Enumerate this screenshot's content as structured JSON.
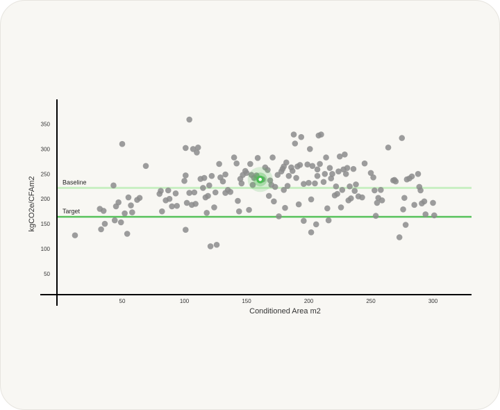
{
  "chart_data": {
    "type": "scatter",
    "xlabel": "Conditioned Area m2",
    "ylabel": "kgCO2e/CFAm2",
    "xlim": [
      0,
      335
    ],
    "ylim": [
      -10,
      385
    ],
    "x_ticks": [
      50,
      100,
      150,
      200,
      250,
      300
    ],
    "y_ticks": [
      50,
      100,
      150,
      200,
      250,
      300,
      350
    ],
    "grid": false,
    "reference_lines": [
      {
        "name": "Baseline",
        "y": 222,
        "color": "#c8efc2"
      },
      {
        "name": "Target",
        "y": 164,
        "color": "#56c25a"
      }
    ],
    "highlight": {
      "x": 161,
      "y": 239,
      "color": "#4cbe54"
    },
    "point_color": "#8c8c8c",
    "points": [
      [
        12,
        127
      ],
      [
        32,
        180
      ],
      [
        33,
        139
      ],
      [
        35,
        176
      ],
      [
        36,
        150
      ],
      [
        43,
        227
      ],
      [
        44,
        157
      ],
      [
        45,
        185
      ],
      [
        47,
        193
      ],
      [
        49,
        153
      ],
      [
        50,
        310
      ],
      [
        52,
        171
      ],
      [
        54,
        130
      ],
      [
        55,
        203
      ],
      [
        57,
        187
      ],
      [
        58,
        173
      ],
      [
        62,
        198
      ],
      [
        64,
        202
      ],
      [
        69,
        266
      ],
      [
        80,
        210
      ],
      [
        81,
        216
      ],
      [
        82,
        175
      ],
      [
        85,
        197
      ],
      [
        87,
        217
      ],
      [
        88,
        200
      ],
      [
        90,
        185
      ],
      [
        93,
        211
      ],
      [
        94,
        186
      ],
      [
        100,
        236
      ],
      [
        101,
        247
      ],
      [
        101,
        138
      ],
      [
        101,
        302
      ],
      [
        102,
        192
      ],
      [
        104,
        212
      ],
      [
        104,
        359
      ],
      [
        106,
        188
      ],
      [
        107,
        300
      ],
      [
        108,
        213
      ],
      [
        109,
        190
      ],
      [
        110,
        293
      ],
      [
        111,
        303
      ],
      [
        113,
        240
      ],
      [
        115,
        222
      ],
      [
        116,
        242
      ],
      [
        117,
        203
      ],
      [
        118,
        172
      ],
      [
        119,
        206
      ],
      [
        120,
        227
      ],
      [
        121,
        105
      ],
      [
        122,
        246
      ],
      [
        124,
        183
      ],
      [
        125,
        213
      ],
      [
        126,
        108
      ],
      [
        128,
        270
      ],
      [
        129,
        243
      ],
      [
        131,
        235
      ],
      [
        133,
        249
      ],
      [
        133,
        212
      ],
      [
        135,
        218
      ],
      [
        137,
        214
      ],
      [
        140,
        283
      ],
      [
        142,
        271
      ],
      [
        143,
        196
      ],
      [
        144,
        175
      ],
      [
        145,
        240
      ],
      [
        146,
        231
      ],
      [
        147,
        248
      ],
      [
        149,
        256
      ],
      [
        150,
        252
      ],
      [
        152,
        178
      ],
      [
        153,
        270
      ],
      [
        154,
        248
      ],
      [
        155,
        228
      ],
      [
        156,
        242
      ],
      [
        158,
        247
      ],
      [
        159,
        282
      ],
      [
        163,
        239
      ],
      [
        165,
        263
      ],
      [
        167,
        258
      ],
      [
        168,
        206
      ],
      [
        169,
        237
      ],
      [
        170,
        228
      ],
      [
        171,
        283
      ],
      [
        172,
        195
      ],
      [
        173,
        224
      ],
      [
        175,
        248
      ],
      [
        176,
        165
      ],
      [
        178,
        255
      ],
      [
        179,
        260
      ],
      [
        180,
        265
      ],
      [
        180,
        218
      ],
      [
        181,
        182
      ],
      [
        182,
        273
      ],
      [
        183,
        226
      ],
      [
        184,
        246
      ],
      [
        186,
        263
      ],
      [
        187,
        256
      ],
      [
        188,
        329
      ],
      [
        189,
        311
      ],
      [
        190,
        242
      ],
      [
        191,
        265
      ],
      [
        192,
        189
      ],
      [
        193,
        268
      ],
      [
        194,
        324
      ],
      [
        196,
        156
      ],
      [
        196,
        230
      ],
      [
        199,
        269
      ],
      [
        200,
        232
      ],
      [
        201,
        300
      ],
      [
        202,
        133
      ],
      [
        202,
        199
      ],
      [
        203,
        266
      ],
      [
        205,
        231
      ],
      [
        206,
        149
      ],
      [
        207,
        246
      ],
      [
        207,
        259
      ],
      [
        208,
        327
      ],
      [
        209,
        270
      ],
      [
        210,
        329
      ],
      [
        212,
        234
      ],
      [
        213,
        250
      ],
      [
        214,
        283
      ],
      [
        215,
        181
      ],
      [
        216,
        157
      ],
      [
        217,
        262
      ],
      [
        218,
        241
      ],
      [
        219,
        250
      ],
      [
        221,
        207
      ],
      [
        222,
        225
      ],
      [
        223,
        210
      ],
      [
        224,
        255
      ],
      [
        225,
        285
      ],
      [
        226,
        183
      ],
      [
        227,
        218
      ],
      [
        228,
        259
      ],
      [
        229,
        289
      ],
      [
        230,
        250
      ],
      [
        231,
        262
      ],
      [
        232,
        197
      ],
      [
        233,
        225
      ],
      [
        234,
        201
      ],
      [
        236,
        260
      ],
      [
        237,
        216
      ],
      [
        238,
        229
      ],
      [
        240,
        205
      ],
      [
        243,
        203
      ],
      [
        245,
        271
      ],
      [
        250,
        252
      ],
      [
        252,
        243
      ],
      [
        253,
        217
      ],
      [
        254,
        166
      ],
      [
        255,
        192
      ],
      [
        256,
        202
      ],
      [
        258,
        218
      ],
      [
        259,
        197
      ],
      [
        264,
        303
      ],
      [
        268,
        237
      ],
      [
        269,
        238
      ],
      [
        270,
        235
      ],
      [
        273,
        123
      ],
      [
        275,
        322
      ],
      [
        276,
        179
      ],
      [
        277,
        202
      ],
      [
        278,
        148
      ],
      [
        279,
        239
      ],
      [
        281,
        241
      ],
      [
        283,
        245
      ],
      [
        285,
        188
      ],
      [
        288,
        250
      ],
      [
        289,
        224
      ],
      [
        290,
        217
      ],
      [
        291,
        191
      ],
      [
        293,
        195
      ],
      [
        294,
        169
      ],
      [
        300,
        192
      ],
      [
        301,
        167
      ]
    ]
  }
}
